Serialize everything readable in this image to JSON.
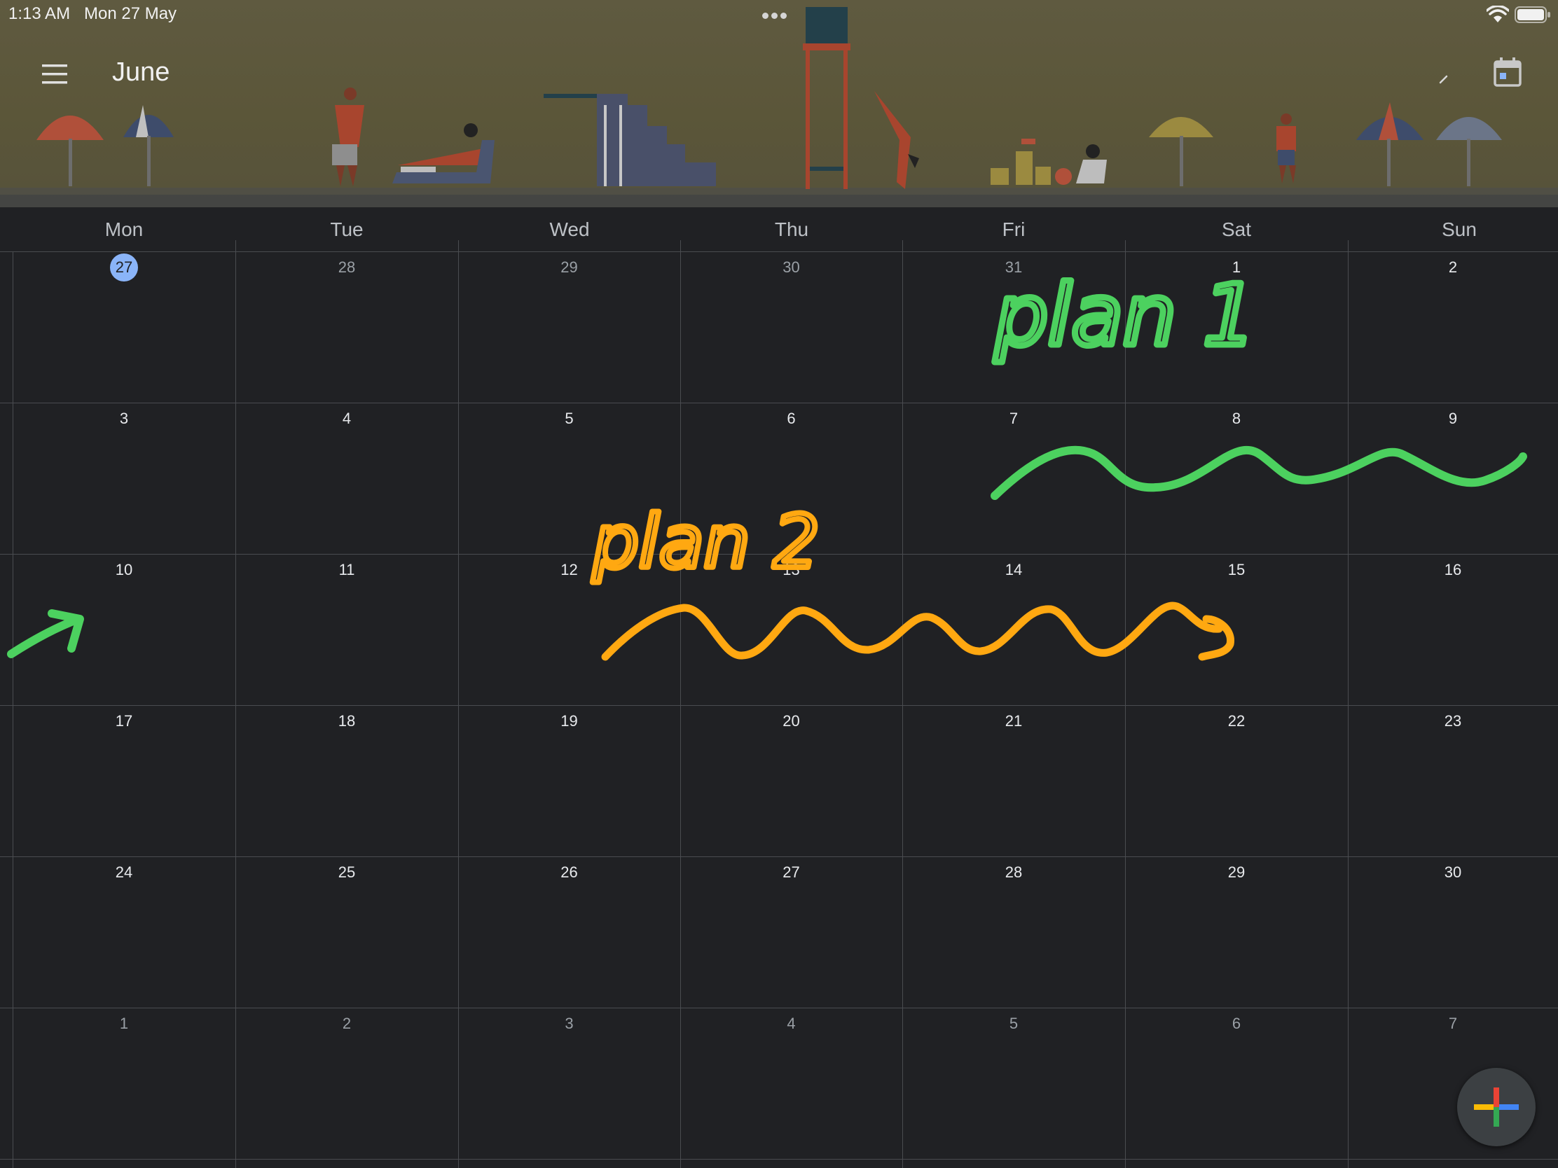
{
  "status_bar": {
    "time": "1:13 AM",
    "date": "Mon 27 May"
  },
  "header": {
    "title": "June",
    "menu_icon": "menu-icon",
    "today_icon": "calendar-today-icon"
  },
  "weekdays": [
    "Mon",
    "Tue",
    "Wed",
    "Thu",
    "Fri",
    "Sat",
    "Sun"
  ],
  "weeks": [
    [
      {
        "d": "27",
        "today": true
      },
      {
        "d": "28",
        "other": true
      },
      {
        "d": "29",
        "other": true
      },
      {
        "d": "30",
        "other": true
      },
      {
        "d": "31",
        "other": true
      },
      {
        "d": "1"
      },
      {
        "d": "2"
      }
    ],
    [
      {
        "d": "3"
      },
      {
        "d": "4"
      },
      {
        "d": "5"
      },
      {
        "d": "6"
      },
      {
        "d": "7"
      },
      {
        "d": "8"
      },
      {
        "d": "9"
      }
    ],
    [
      {
        "d": "10"
      },
      {
        "d": "11"
      },
      {
        "d": "12"
      },
      {
        "d": "13"
      },
      {
        "d": "14"
      },
      {
        "d": "15"
      },
      {
        "d": "16"
      }
    ],
    [
      {
        "d": "17"
      },
      {
        "d": "18"
      },
      {
        "d": "19"
      },
      {
        "d": "20"
      },
      {
        "d": "21"
      },
      {
        "d": "22"
      },
      {
        "d": "23"
      }
    ],
    [
      {
        "d": "24"
      },
      {
        "d": "25"
      },
      {
        "d": "26"
      },
      {
        "d": "27"
      },
      {
        "d": "28"
      },
      {
        "d": "29"
      },
      {
        "d": "30"
      }
    ],
    [
      {
        "d": "1",
        "other": true
      },
      {
        "d": "2",
        "other": true
      },
      {
        "d": "3",
        "other": true
      },
      {
        "d": "4",
        "other": true
      },
      {
        "d": "5",
        "other": true
      },
      {
        "d": "6",
        "other": true
      },
      {
        "d": "7",
        "other": true
      }
    ]
  ],
  "annotations": {
    "plan1": "plan 1",
    "plan2": "plan 2"
  },
  "colors": {
    "background": "#202124",
    "today_accent": "#8ab4f8",
    "ink_green": "#4cd15f",
    "ink_orange": "#ffa811"
  },
  "fab": {
    "icon": "create-plus-icon"
  }
}
